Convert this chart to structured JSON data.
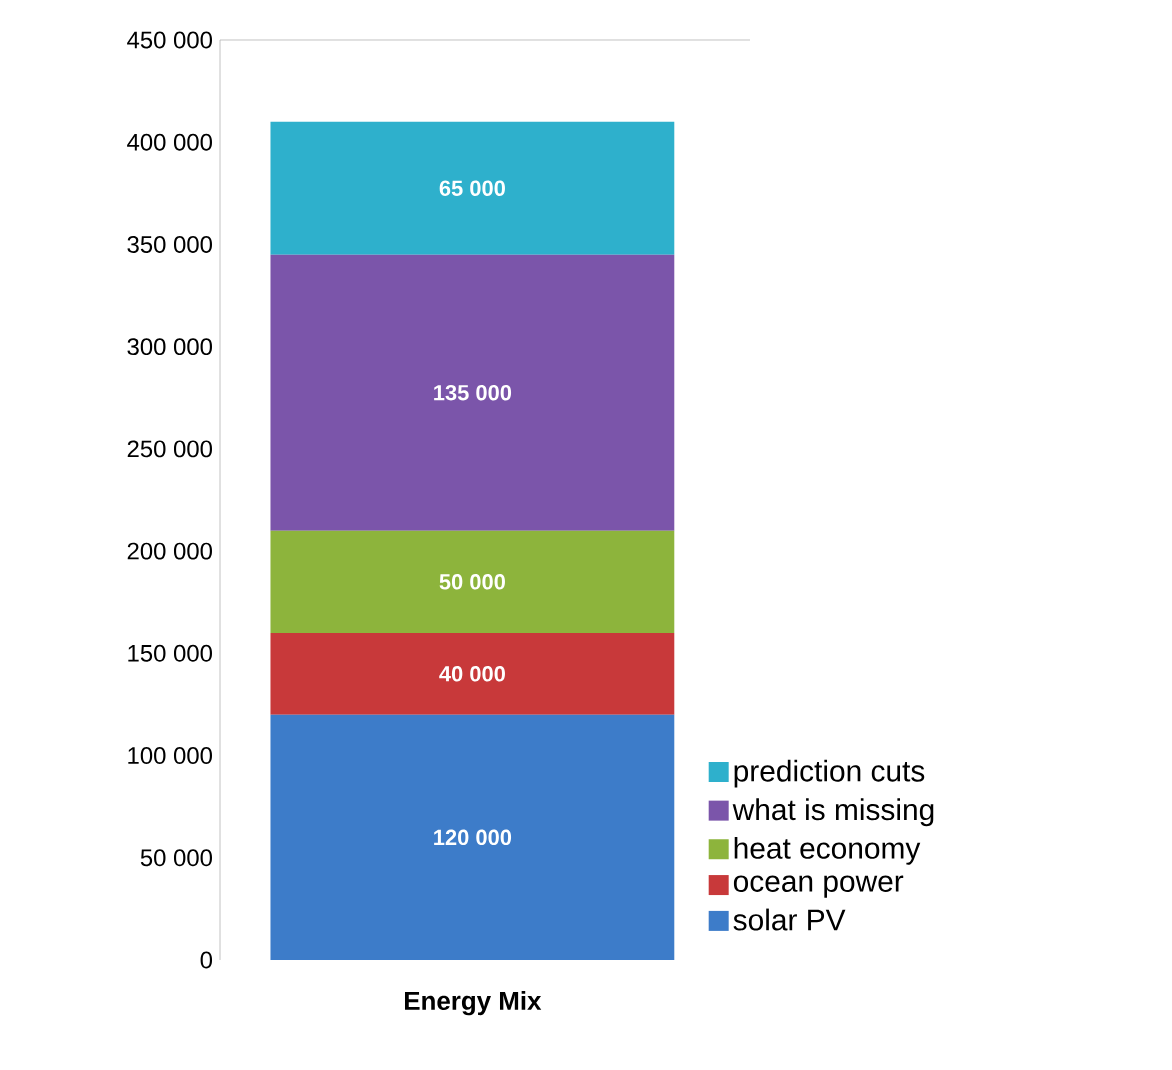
{
  "chart_data": {
    "type": "bar",
    "stacked": true,
    "categories": [
      "Energy Mix"
    ],
    "series": [
      {
        "name": "solar PV",
        "color": "#3d7cc9",
        "values": [
          120000
        ],
        "value_labels": [
          "120 000"
        ]
      },
      {
        "name": "ocean power",
        "color": "#c8393a",
        "values": [
          40000
        ],
        "value_labels": [
          "40 000"
        ]
      },
      {
        "name": "heat economy",
        "color": "#8db43c",
        "values": [
          50000
        ],
        "value_labels": [
          "50 000"
        ]
      },
      {
        "name": "what is missing",
        "color": "#7b55aa",
        "values": [
          135000
        ],
        "value_labels": [
          "135 000"
        ]
      },
      {
        "name": "prediction cuts",
        "color": "#2eb0cc",
        "values": [
          65000
        ],
        "value_labels": [
          "65 000"
        ]
      }
    ],
    "ylim": [
      0,
      450000
    ],
    "yticks": [
      {
        "value": 0,
        "label": "0"
      },
      {
        "value": 50000,
        "label": "50 000"
      },
      {
        "value": 100000,
        "label": "100 000"
      },
      {
        "value": 150000,
        "label": "150 000"
      },
      {
        "value": 200000,
        "label": "200 000"
      },
      {
        "value": 250000,
        "label": "250 000"
      },
      {
        "value": 300000,
        "label": "300 000"
      },
      {
        "value": 350000,
        "label": "350 000"
      },
      {
        "value": 400000,
        "label": "400 000"
      },
      {
        "value": 450000,
        "label": "450 000"
      }
    ],
    "legend": "right",
    "grid": false
  }
}
